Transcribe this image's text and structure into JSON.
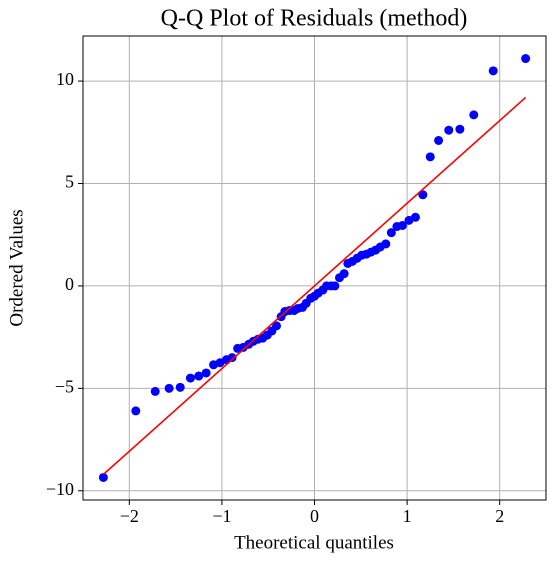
{
  "chart_data": {
    "type": "scatter",
    "title": "Q-Q Plot of Residuals (method)",
    "xlabel": "Theoretical quantiles",
    "ylabel": "Ordered Values",
    "x": [
      -2.28,
      -1.93,
      -1.72,
      -1.57,
      -1.45,
      -1.34,
      -1.25,
      -1.17,
      -1.09,
      -1.02,
      -0.95,
      -0.89,
      -0.83,
      -0.77,
      -0.71,
      -0.66,
      -0.61,
      -0.56,
      -0.51,
      -0.46,
      -0.41,
      -0.36,
      -0.32,
      -0.27,
      -0.22,
      -0.18,
      -0.13,
      -0.09,
      -0.04,
      0,
      0.04,
      0.09,
      0.13,
      0.18,
      0.22,
      0.27,
      0.32,
      0.36,
      0.41,
      0.46,
      0.51,
      0.56,
      0.61,
      0.66,
      0.71,
      0.77,
      0.83,
      0.89,
      0.95,
      1.02,
      1.09,
      1.17,
      1.25,
      1.34,
      1.45,
      1.57,
      1.72,
      1.93,
      2.28
    ],
    "values": [
      -9.35,
      -6.1,
      -5.15,
      -5.0,
      -4.95,
      -4.5,
      -4.4,
      -4.25,
      -3.85,
      -3.75,
      -3.6,
      -3.5,
      -3.05,
      -3.0,
      -2.85,
      -2.7,
      -2.6,
      -2.55,
      -2.4,
      -2.2,
      -1.95,
      -1.5,
      -1.25,
      -1.2,
      -1.2,
      -1.1,
      -1.05,
      -0.85,
      -0.6,
      -0.5,
      -0.35,
      -0.2,
      0,
      0,
      0,
      0.4,
      0.6,
      1.1,
      1.2,
      1.35,
      1.5,
      1.55,
      1.65,
      1.75,
      1.9,
      2.05,
      2.6,
      2.9,
      2.95,
      3.2,
      3.35,
      4.45,
      6.3,
      7.1,
      7.6,
      7.65,
      8.35,
      10.5,
      11.1
    ],
    "color": "#0000ff",
    "fit_line": {
      "x": [
        -2.28,
        2.28
      ],
      "values": [
        -9.2,
        9.2
      ],
      "color": "#ff0000"
    },
    "xlim": [
      -2.5,
      2.5
    ],
    "xticks": [
      {
        "value": -2,
        "label": "−2"
      },
      {
        "value": -1,
        "label": "−1"
      },
      0,
      1,
      2
    ],
    "ylim": [
      -10.45,
      12.2
    ],
    "yticks": [
      {
        "value": -10,
        "label": "−10"
      },
      {
        "value": -5,
        "label": "−5"
      },
      0,
      5,
      10
    ],
    "grid": true
  }
}
